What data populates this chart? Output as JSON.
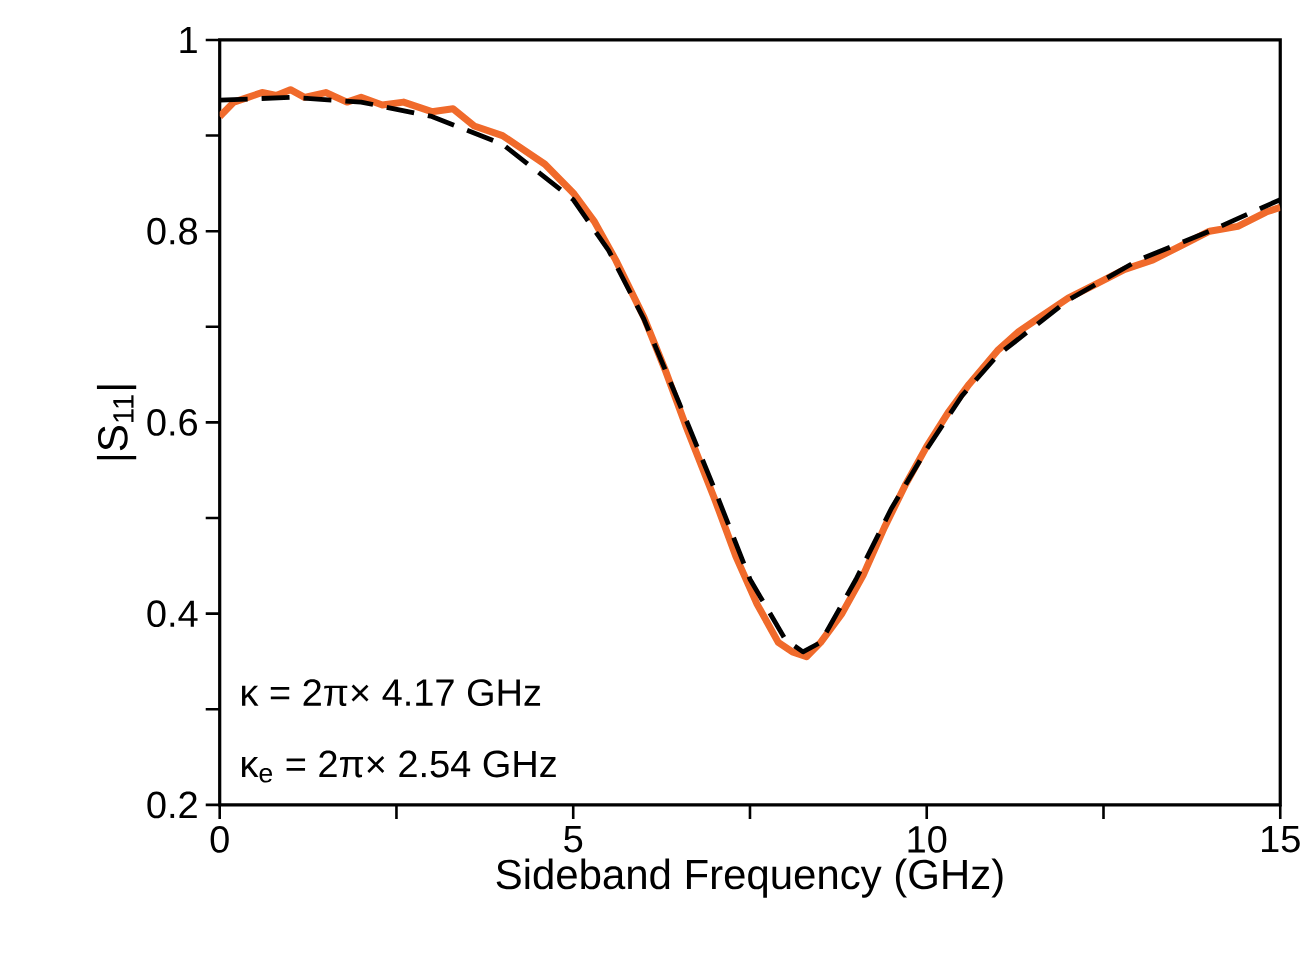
{
  "chart_data": {
    "type": "line",
    "xlabel": "Sideband Frequency (GHz)",
    "ylabel": "|S$_{11}$|",
    "xlim": [
      0,
      15
    ],
    "ylim": [
      0.2,
      1
    ],
    "xticks": [
      0,
      {
        "value": 2.5,
        "label": null
      },
      5,
      {
        "value": 7.5,
        "label": null
      },
      10,
      {
        "value": 12.5,
        "label": null
      },
      15
    ],
    "yticks": [
      0.2,
      {
        "value": 0.3,
        "label": null
      },
      0.4,
      {
        "value": 0.5,
        "label": null
      },
      0.6,
      {
        "value": 0.7,
        "label": null
      },
      0.8,
      {
        "value": 0.9,
        "label": null
      },
      1
    ],
    "annotations": [
      "κ = 2π× 4.17 GHz",
      "κ$_{e}$ = 2π× 2.54 GHz"
    ],
    "series": [
      {
        "color": "#f06a2b",
        "line_style": "solid",
        "x": [
          0,
          0.2,
          0.4,
          0.6,
          0.8,
          1.0,
          1.2,
          1.5,
          1.8,
          2.0,
          2.3,
          2.6,
          3.0,
          3.3,
          3.6,
          4.0,
          4.3,
          4.6,
          5.0,
          5.3,
          5.6,
          6.0,
          6.3,
          6.6,
          7.0,
          7.3,
          7.6,
          7.9,
          8.1,
          8.3,
          8.5,
          8.8,
          9.1,
          9.4,
          9.7,
          10.0,
          10.3,
          10.6,
          11.0,
          11.3,
          11.6,
          12.0,
          12.4,
          12.8,
          13.2,
          13.6,
          14.0,
          14.4,
          14.8,
          15.0
        ],
        "values": [
          0.92,
          0.935,
          0.94,
          0.945,
          0.942,
          0.948,
          0.94,
          0.945,
          0.935,
          0.94,
          0.932,
          0.935,
          0.925,
          0.928,
          0.91,
          0.9,
          0.885,
          0.87,
          0.84,
          0.81,
          0.77,
          0.71,
          0.655,
          0.595,
          0.52,
          0.46,
          0.41,
          0.37,
          0.36,
          0.355,
          0.37,
          0.4,
          0.44,
          0.49,
          0.535,
          0.575,
          0.61,
          0.64,
          0.675,
          0.695,
          0.71,
          0.73,
          0.745,
          0.76,
          0.77,
          0.785,
          0.8,
          0.805,
          0.82,
          0.825
        ]
      },
      {
        "color": "#000000",
        "line_style": "dashed",
        "x": [
          0,
          1,
          2,
          3,
          4,
          5,
          5.5,
          6,
          6.5,
          7,
          7.5,
          8,
          8.25,
          8.5,
          9,
          9.5,
          10,
          10.5,
          11,
          12,
          13,
          14,
          15
        ],
        "values": [
          0.937,
          0.94,
          0.935,
          0.92,
          0.891,
          0.833,
          0.78,
          0.708,
          0.62,
          0.53,
          0.436,
          0.373,
          0.36,
          0.37,
          0.436,
          0.51,
          0.572,
          0.628,
          0.67,
          0.728,
          0.77,
          0.8,
          0.833
        ]
      }
    ]
  }
}
